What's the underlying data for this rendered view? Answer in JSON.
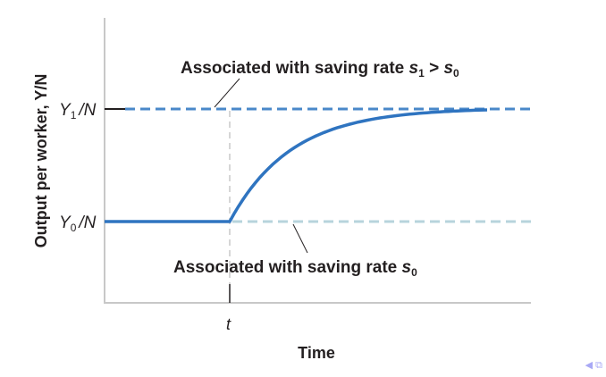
{
  "chart_data": {
    "type": "line",
    "title": "",
    "xlabel": "Time",
    "ylabel": "Output per worker, Y/N",
    "x_ticks": [
      {
        "label": "t"
      }
    ],
    "y_ticks": [
      {
        "label_main": "Y",
        "label_sub": "0",
        "label_tail": "/N"
      },
      {
        "label_main": "Y",
        "label_sub": "1",
        "label_tail": "/N"
      }
    ],
    "series": [
      {
        "description_key": "actual_path",
        "color": "#2f74c0",
        "style": "solid"
      },
      {
        "description_key": "s1_level",
        "color": "#4a88c9",
        "style": "dashed"
      },
      {
        "description_key": "s0_level",
        "color": "#b7d4dc",
        "style": "dashed"
      }
    ],
    "annotations": {
      "top": {
        "text": "Associated with saving rate ",
        "s": "s",
        "sub1": "1",
        "gt": " > ",
        "sub0": "0"
      },
      "bottom": {
        "text": "Associated with saving rate ",
        "s": "s",
        "sub0": "0"
      }
    },
    "grid": false
  },
  "nav": {
    "prev_icon": "triangle-left-icon",
    "window_icon": "window-icon"
  }
}
